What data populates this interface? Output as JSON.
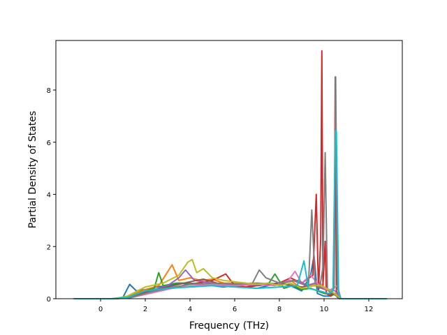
{
  "chart_data": {
    "type": "line",
    "xlabel": "Frequency (THz)",
    "ylabel": "Partial Density of States",
    "xlim": [
      -2.0,
      13.5
    ],
    "ylim": [
      0,
      9.9
    ],
    "xticks": [
      0,
      2,
      4,
      6,
      8,
      10,
      12
    ],
    "xtick_labels": [
      "0",
      "2",
      "4",
      "6",
      "8",
      "10",
      "12"
    ],
    "yticks": [
      0,
      2,
      4,
      6,
      8
    ],
    "ytick_labels": [
      "0",
      "2",
      "4",
      "6",
      "8"
    ],
    "grid": false,
    "legend": "none",
    "series": [
      {
        "color": "#1f77b4",
        "x": [
          -1.2,
          0.5,
          1.0,
          1.3,
          1.6,
          2.0,
          2.5,
          3.0,
          3.5,
          4.0,
          4.5,
          5.0,
          5.5,
          6.0,
          6.5,
          7.0,
          7.5,
          8.0,
          8.5,
          9.0,
          9.4,
          9.55,
          9.7,
          10.0,
          10.3,
          10.5,
          10.6,
          10.75,
          12.8
        ],
        "y": [
          0,
          0,
          0.05,
          0.55,
          0.3,
          0.35,
          0.45,
          0.5,
          0.6,
          0.55,
          0.6,
          0.5,
          0.45,
          0.5,
          0.45,
          0.4,
          0.5,
          0.6,
          0.5,
          0.3,
          0.9,
          1.65,
          0.2,
          0.1,
          0.1,
          0.2,
          0.05,
          0,
          0
        ]
      },
      {
        "color": "#ff7f0e",
        "x": [
          -1.2,
          0.6,
          1.2,
          2.0,
          2.6,
          3.2,
          3.5,
          4.0,
          4.5,
          5.0,
          5.5,
          6.0,
          6.5,
          7.0,
          7.5,
          8.0,
          8.5,
          9.0,
          9.4,
          9.8,
          10.2,
          10.5,
          10.75,
          12.8
        ],
        "y": [
          0,
          0,
          0.1,
          0.35,
          0.5,
          1.3,
          0.7,
          0.8,
          0.7,
          0.75,
          0.6,
          0.6,
          0.55,
          0.5,
          0.6,
          0.55,
          0.7,
          0.4,
          0.5,
          0.6,
          0.3,
          0.2,
          0,
          0
        ]
      },
      {
        "color": "#2ca02c",
        "x": [
          -1.2,
          0.6,
          1.2,
          2.0,
          2.4,
          2.6,
          2.8,
          3.4,
          4.0,
          4.5,
          5.0,
          5.5,
          6.0,
          6.5,
          7.0,
          7.5,
          7.8,
          8.2,
          8.6,
          9.0,
          9.4,
          10.0,
          10.5,
          10.75,
          12.8
        ],
        "y": [
          0,
          0,
          0.05,
          0.3,
          0.4,
          1.0,
          0.5,
          0.6,
          0.6,
          0.55,
          0.6,
          0.5,
          0.5,
          0.45,
          0.5,
          0.55,
          0.95,
          0.4,
          0.5,
          0.35,
          0.4,
          0.2,
          0.15,
          0,
          0
        ]
      },
      {
        "color": "#d62728",
        "x": [
          -1.2,
          0.6,
          1.2,
          2.0,
          3.0,
          4.0,
          5.0,
          5.6,
          6.0,
          6.5,
          7.0,
          7.5,
          8.0,
          8.5,
          9.0,
          9.5,
          9.65,
          9.75,
          9.85,
          9.9,
          9.95,
          10.05,
          10.1,
          10.3,
          10.45,
          10.5,
          10.55,
          10.7,
          12.8
        ],
        "y": [
          0,
          0,
          0.05,
          0.2,
          0.4,
          0.55,
          0.7,
          0.95,
          0.5,
          0.45,
          0.5,
          0.55,
          0.6,
          0.8,
          0.6,
          0.9,
          4.0,
          0.3,
          2.3,
          9.5,
          0.5,
          2.2,
          0.2,
          0.1,
          0.5,
          8.5,
          0.3,
          0,
          0
        ]
      },
      {
        "color": "#9467bd",
        "x": [
          -1.2,
          0.6,
          1.2,
          2.0,
          3.0,
          3.5,
          3.8,
          4.2,
          5.0,
          6.0,
          7.0,
          8.0,
          8.6,
          9.2,
          9.6,
          10.0,
          10.5,
          10.75,
          12.8
        ],
        "y": [
          0,
          0,
          0.05,
          0.25,
          0.5,
          0.8,
          1.1,
          0.7,
          0.6,
          0.55,
          0.6,
          0.55,
          0.7,
          0.5,
          0.6,
          0.4,
          0.3,
          0,
          0
        ]
      },
      {
        "color": "#8c564b",
        "x": [
          -1.2,
          0.7,
          1.3,
          2.2,
          3.0,
          4.0,
          4.6,
          5.2,
          6.0,
          7.0,
          8.0,
          9.0,
          9.6,
          10.2,
          10.75,
          12.8
        ],
        "y": [
          0,
          0,
          0.05,
          0.3,
          0.45,
          0.65,
          0.75,
          0.6,
          0.55,
          0.5,
          0.6,
          0.45,
          0.5,
          0.3,
          0,
          0
        ]
      },
      {
        "color": "#e377c2",
        "x": [
          -1.2,
          0.7,
          1.4,
          2.2,
          3.2,
          4.2,
          5.0,
          6.0,
          7.0,
          7.8,
          8.4,
          8.7,
          9.0,
          9.4,
          9.8,
          10.2,
          10.6,
          10.75,
          12.8
        ],
        "y": [
          0,
          0,
          0.05,
          0.2,
          0.4,
          0.5,
          0.55,
          0.5,
          0.55,
          0.5,
          0.7,
          1.05,
          0.6,
          0.9,
          0.5,
          0.3,
          0.5,
          0,
          0
        ]
      },
      {
        "color": "#7f7f7f",
        "x": [
          -1.2,
          0.7,
          1.4,
          2.2,
          3.0,
          4.0,
          5.0,
          6.0,
          6.8,
          7.1,
          7.4,
          8.0,
          8.8,
          9.3,
          9.45,
          9.6,
          9.8,
          9.95,
          10.05,
          10.15,
          10.3,
          10.45,
          10.52,
          10.6,
          10.75,
          12.8
        ],
        "y": [
          0,
          0,
          0.05,
          0.25,
          0.4,
          0.55,
          0.6,
          0.55,
          0.6,
          1.1,
          0.8,
          0.6,
          0.7,
          0.5,
          3.4,
          0.6,
          0.4,
          1.2,
          5.6,
          0.4,
          0.2,
          0.4,
          8.5,
          0.4,
          0,
          0
        ]
      },
      {
        "color": "#bcbd22",
        "x": [
          -1.2,
          0.6,
          1.2,
          2.0,
          2.8,
          3.5,
          3.9,
          4.1,
          4.3,
          4.6,
          5.0,
          5.5,
          6.0,
          6.5,
          7.0,
          7.5,
          8.0,
          8.5,
          9.0,
          9.5,
          9.9,
          10.3,
          10.75,
          12.8
        ],
        "y": [
          0,
          0,
          0.1,
          0.45,
          0.6,
          0.9,
          1.4,
          1.5,
          1.0,
          1.15,
          0.8,
          0.7,
          0.65,
          0.6,
          0.55,
          0.6,
          0.5,
          0.6,
          0.4,
          0.5,
          0.5,
          0.3,
          0,
          0
        ]
      },
      {
        "color": "#17becf",
        "x": [
          -1.2,
          0.6,
          1.2,
          2.0,
          3.0,
          4.0,
          5.0,
          6.0,
          7.0,
          8.0,
          8.8,
          9.1,
          9.3,
          9.8,
          10.2,
          10.4,
          10.5,
          10.55,
          10.65,
          10.75,
          12.8
        ],
        "y": [
          0,
          0,
          0.05,
          0.3,
          0.4,
          0.45,
          0.5,
          0.45,
          0.4,
          0.45,
          0.5,
          1.45,
          0.4,
          0.3,
          0.2,
          0.3,
          6.45,
          6.4,
          0.2,
          0,
          0
        ]
      }
    ]
  }
}
